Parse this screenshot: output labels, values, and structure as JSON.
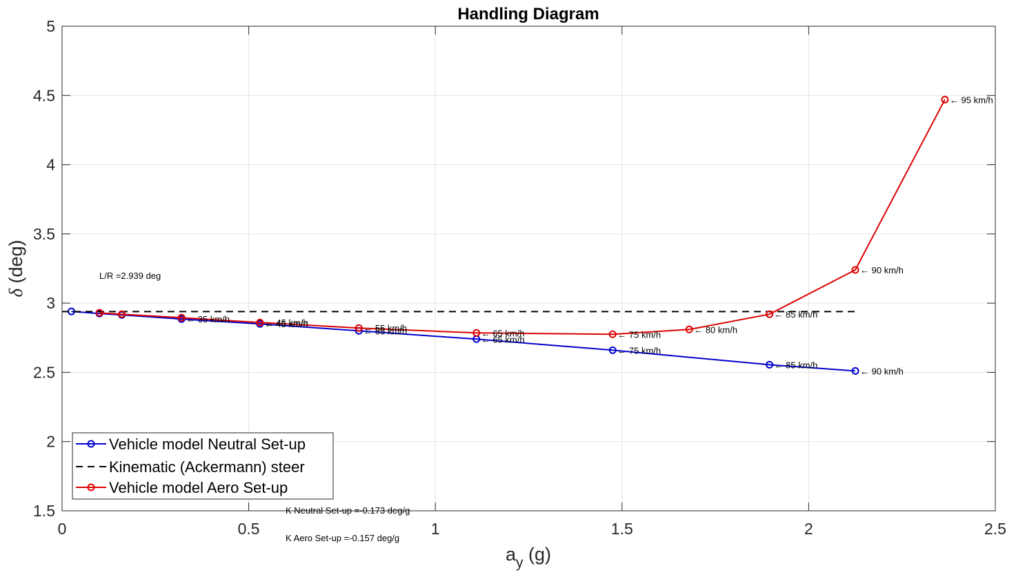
{
  "chart_data": {
    "type": "line",
    "title": "Handling Diagram",
    "xlabel_main": "a",
    "xlabel_sub": "y",
    "xlabel_unit": " (g)",
    "ylabel_symbol": "δ",
    "ylabel_unit": " (deg)",
    "xlim": [
      0,
      2.5
    ],
    "ylim": [
      1.5,
      5
    ],
    "xticks": [
      0,
      0.5,
      1,
      1.5,
      2,
      2.5
    ],
    "xtick_labels": [
      "0",
      "0.5",
      "1",
      "1.5",
      "2",
      "2.5"
    ],
    "yticks": [
      1.5,
      2,
      2.5,
      3,
      3.5,
      4,
      4.5,
      5
    ],
    "ytick_labels": [
      "1.5",
      "2",
      "2.5",
      "3",
      "3.5",
      "4",
      "4.5",
      "5"
    ],
    "grid": true,
    "legend_position": "bottom-left",
    "series": [
      {
        "name": "Vehicle model Neutral Set-up",
        "color": "#0000cc",
        "style": "solid",
        "marker": "circle",
        "x": [
          0.025,
          0.1,
          0.16,
          0.32,
          0.53,
          0.795,
          1.11,
          1.475,
          1.895,
          2.125
        ],
        "y": [
          2.94,
          2.925,
          2.915,
          2.885,
          2.85,
          2.8,
          2.74,
          2.66,
          2.555,
          2.51
        ],
        "labels": [
          "",
          "",
          "",
          "35 km/h",
          "45 km/h",
          "55 km/h",
          "65 km/h",
          "75 km/h",
          "85 km/h",
          "90 km/h"
        ]
      },
      {
        "name": "Kinematic (Ackermann) steer",
        "color": "#000000",
        "style": "dashed",
        "marker": "none",
        "x": [
          0,
          2.125
        ],
        "y": [
          2.939,
          2.939
        ],
        "labels": []
      },
      {
        "name": "Vehicle model Aero Set-up",
        "color": "#dd0000",
        "style": "solid",
        "marker": "circle",
        "x": [
          0.1,
          0.16,
          0.32,
          0.53,
          0.795,
          1.11,
          1.475,
          1.68,
          1.895,
          2.125,
          2.365
        ],
        "y": [
          2.93,
          2.92,
          2.895,
          2.86,
          2.82,
          2.785,
          2.775,
          2.81,
          2.92,
          3.24,
          4.47
        ],
        "labels": [
          "",
          "",
          "",
          "45 km/h",
          "55 km/h",
          "65 km/h",
          "75 km/h",
          "80 km/h",
          "85 km/h",
          "90 km/h",
          "95 km/h"
        ]
      }
    ],
    "annotations": {
      "lr": "L/R =2.939 deg",
      "k_neutral": "K Neutral Set-up =-0.173 deg/g",
      "k_aero": "K Aero Set-up =-0.157 deg/g"
    }
  }
}
